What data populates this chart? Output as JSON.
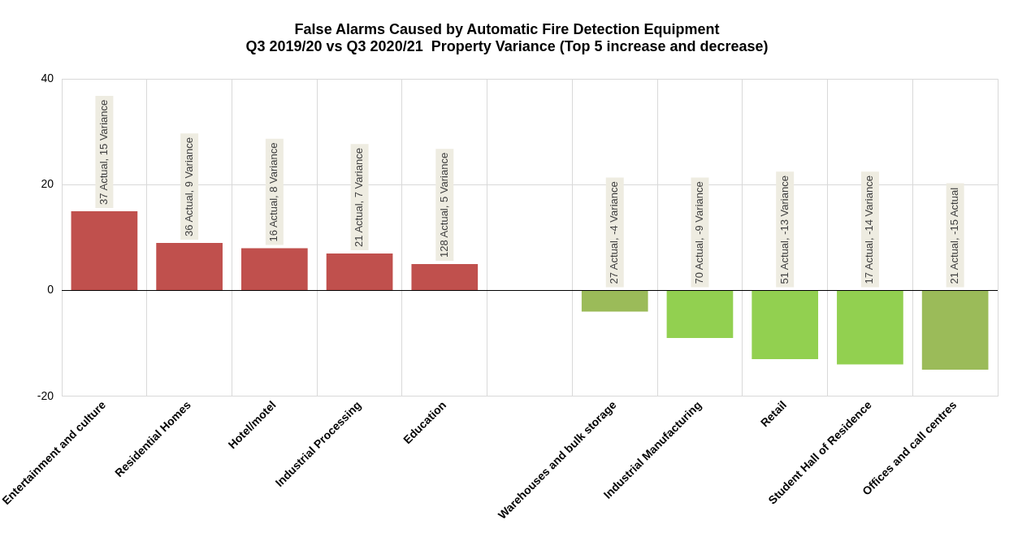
{
  "chart_data": {
    "type": "bar",
    "title": "False Alarms Caused by Automatic Fire Detection Equipment\nQ3 2019/20 vs Q3 2020/21  Property Variance (Top 5 increase and decrease)",
    "categories": [
      "Entertainment and culture",
      "Residential Homes",
      "Hotel/motel",
      "Industrial Processing",
      "Education",
      null,
      "Warehouses and bulk storage",
      "Industrial Manufacturing",
      "Retail",
      "Student Hall of Residence",
      "Offices and call centres"
    ],
    "values": [
      15,
      9,
      8,
      7,
      5,
      null,
      -4,
      -9,
      -13,
      -14,
      -15
    ],
    "colors": [
      "#c0504d",
      "#c0504d",
      "#c0504d",
      "#c0504d",
      "#c0504d",
      "#c0504d",
      "#9bbb59",
      "#92d050",
      "#92d050",
      "#92d050",
      "#9bbb59"
    ],
    "value_labels": [
      "37 Actual, 15 Variance",
      "36 Actual, 9 Variance",
      "16 Actual, 8 Variance",
      "21 Actual, 7 Variance",
      "128 Actual, 5 Variance",
      null,
      "27 Actual, -4 Variance",
      "70 Actual, -9 Variance",
      "51 Actual, -13 Variance",
      "17 Actual, -14 Variance",
      "21 Actual, -15 Actual"
    ],
    "ylim": [
      -20,
      40
    ],
    "yticks": [
      -20,
      0,
      20,
      40
    ],
    "grid": true
  }
}
